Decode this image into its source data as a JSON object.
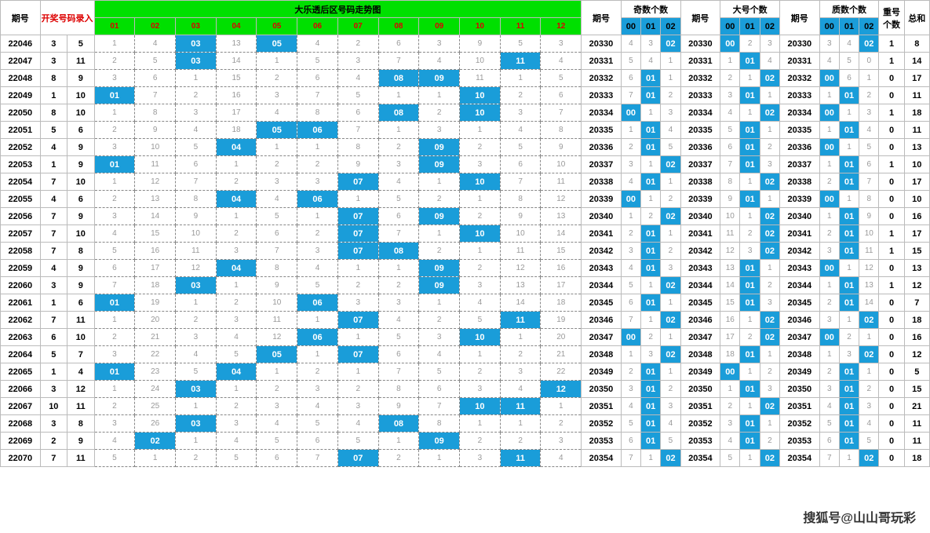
{
  "headers": {
    "issue": "期号",
    "record": "开奖号码录入",
    "trend_title": "大乐透后区号码走势图",
    "side_issue": "期号",
    "odd": "奇数个数",
    "big": "大号个数",
    "prime": "质数个数",
    "repeat": "重号个数",
    "sum": "总和",
    "watermark": "搜狐号@山山哥玩彩"
  },
  "trend_cols": [
    "01",
    "02",
    "03",
    "04",
    "05",
    "06",
    "07",
    "08",
    "09",
    "10",
    "11",
    "12"
  ],
  "cnt_cols": [
    "00",
    "01",
    "02"
  ],
  "colors": {
    "green": "#00e000",
    "highlight": "#1a9dd9",
    "miss_text": "#999999",
    "header_red": "#dd0000",
    "border": "#bbbbbb",
    "dashed": "#888888"
  },
  "rows": [
    {
      "issue": "22046",
      "rec": [
        3,
        5
      ],
      "hits": [
        3,
        5
      ],
      "miss": [
        1,
        4,
        0,
        13,
        0,
        4,
        2,
        6,
        3,
        9,
        5,
        3
      ],
      "side": "20330",
      "odd": {
        "h": 2,
        "m": [
          4,
          3,
          0
        ]
      },
      "big": {
        "h": 0,
        "m": [
          0,
          2,
          3
        ]
      },
      "prime": {
        "h": 2,
        "m": [
          3,
          4,
          0
        ]
      },
      "rep": 1,
      "sum": 8
    },
    {
      "issue": "22047",
      "rec": [
        3,
        11
      ],
      "hits": [
        3,
        11
      ],
      "miss": [
        2,
        5,
        0,
        14,
        1,
        5,
        3,
        7,
        4,
        10,
        0,
        4
      ],
      "side": "20331",
      "odd": {
        "h": null,
        "m": [
          5,
          4,
          1
        ]
      },
      "big": {
        "h": 1,
        "m": [
          1,
          0,
          4
        ]
      },
      "prime": {
        "h": null,
        "m": [
          4,
          5,
          0
        ]
      },
      "rep": 1,
      "sum": 14
    },
    {
      "issue": "22048",
      "rec": [
        8,
        9
      ],
      "hits": [
        8,
        9
      ],
      "miss": [
        3,
        6,
        1,
        15,
        2,
        6,
        4,
        0,
        0,
        11,
        1,
        5
      ],
      "side": "20332",
      "odd": {
        "h": 1,
        "m": [
          6,
          0,
          1
        ]
      },
      "big": {
        "h": 2,
        "m": [
          2,
          1,
          0
        ]
      },
      "prime": {
        "h": 0,
        "m": [
          0,
          6,
          1
        ]
      },
      "rep": 0,
      "sum": 17
    },
    {
      "issue": "22049",
      "rec": [
        1,
        10
      ],
      "hits": [
        1,
        10
      ],
      "miss": [
        0,
        7,
        2,
        16,
        3,
        7,
        5,
        1,
        1,
        0,
        2,
        6
      ],
      "side": "20333",
      "odd": {
        "h": 1,
        "m": [
          7,
          0,
          2
        ]
      },
      "big": {
        "h": 1,
        "m": [
          3,
          0,
          1
        ]
      },
      "prime": {
        "h": 1,
        "m": [
          1,
          0,
          2
        ]
      },
      "rep": 0,
      "sum": 11
    },
    {
      "issue": "22050",
      "rec": [
        8,
        10
      ],
      "hits": [
        8,
        10
      ],
      "miss": [
        1,
        8,
        3,
        17,
        4,
        8,
        6,
        0,
        2,
        0,
        3,
        7
      ],
      "side": "20334",
      "odd": {
        "h": 0,
        "m": [
          0,
          1,
          3
        ]
      },
      "big": {
        "h": 2,
        "m": [
          4,
          1,
          0
        ]
      },
      "prime": {
        "h": 0,
        "m": [
          0,
          1,
          3
        ]
      },
      "rep": 1,
      "sum": 18
    },
    {
      "issue": "22051",
      "rec": [
        5,
        6
      ],
      "hits": [
        5,
        6
      ],
      "miss": [
        2,
        9,
        4,
        18,
        0,
        0,
        7,
        1,
        3,
        1,
        4,
        8
      ],
      "side": "20335",
      "odd": {
        "h": 1,
        "m": [
          1,
          0,
          4
        ]
      },
      "big": {
        "h": 1,
        "m": [
          5,
          0,
          1
        ]
      },
      "prime": {
        "h": 1,
        "m": [
          1,
          0,
          4
        ]
      },
      "rep": 0,
      "sum": 11
    },
    {
      "issue": "22052",
      "rec": [
        4,
        9
      ],
      "hits": [
        4,
        9
      ],
      "miss": [
        3,
        10,
        5,
        0,
        1,
        1,
        8,
        2,
        0,
        2,
        5,
        9
      ],
      "side": "20336",
      "odd": {
        "h": 1,
        "m": [
          2,
          0,
          5
        ]
      },
      "big": {
        "h": 1,
        "m": [
          6,
          0,
          2
        ]
      },
      "prime": {
        "h": 0,
        "m": [
          0,
          1,
          5
        ]
      },
      "rep": 0,
      "sum": 13
    },
    {
      "issue": "22053",
      "rec": [
        1,
        9
      ],
      "hits": [
        1,
        9
      ],
      "miss": [
        0,
        11,
        6,
        1,
        2,
        2,
        9,
        3,
        0,
        3,
        6,
        10
      ],
      "side": "20337",
      "odd": {
        "h": 2,
        "m": [
          3,
          1,
          0
        ]
      },
      "big": {
        "h": 1,
        "m": [
          7,
          0,
          3
        ]
      },
      "prime": {
        "h": 1,
        "m": [
          1,
          0,
          6
        ]
      },
      "rep": 1,
      "sum": 10
    },
    {
      "issue": "22054",
      "rec": [
        7,
        10
      ],
      "hits": [
        7,
        10
      ],
      "miss": [
        1,
        12,
        7,
        2,
        3,
        3,
        0,
        4,
        1,
        0,
        7,
        11
      ],
      "side": "20338",
      "odd": {
        "h": 1,
        "m": [
          4,
          0,
          1
        ]
      },
      "big": {
        "h": 2,
        "m": [
          8,
          1,
          0
        ]
      },
      "prime": {
        "h": 1,
        "m": [
          2,
          0,
          7
        ]
      },
      "rep": 0,
      "sum": 17
    },
    {
      "issue": "22055",
      "rec": [
        4,
        6
      ],
      "hits": [
        4,
        6
      ],
      "miss": [
        2,
        13,
        8,
        0,
        4,
        0,
        1,
        5,
        2,
        1,
        8,
        12
      ],
      "side": "20339",
      "odd": {
        "h": 0,
        "m": [
          0,
          1,
          2
        ]
      },
      "big": {
        "h": 1,
        "m": [
          9,
          0,
          1
        ]
      },
      "prime": {
        "h": 0,
        "m": [
          0,
          1,
          8
        ]
      },
      "rep": 0,
      "sum": 10
    },
    {
      "issue": "22056",
      "rec": [
        7,
        9
      ],
      "hits": [
        7,
        9
      ],
      "miss": [
        3,
        14,
        9,
        1,
        5,
        1,
        0,
        6,
        0,
        2,
        9,
        13
      ],
      "side": "20340",
      "odd": {
        "h": 2,
        "m": [
          1,
          2,
          0
        ]
      },
      "big": {
        "h": 2,
        "m": [
          10,
          1,
          0
        ]
      },
      "prime": {
        "h": 1,
        "m": [
          1,
          0,
          9
        ]
      },
      "rep": 0,
      "sum": 16
    },
    {
      "issue": "22057",
      "rec": [
        7,
        10
      ],
      "hits": [
        7,
        10
      ],
      "miss": [
        4,
        15,
        10,
        2,
        6,
        2,
        0,
        7,
        1,
        0,
        10,
        14
      ],
      "side": "20341",
      "odd": {
        "h": 1,
        "m": [
          2,
          0,
          1
        ]
      },
      "big": {
        "h": 2,
        "m": [
          11,
          2,
          0
        ]
      },
      "prime": {
        "h": 1,
        "m": [
          2,
          0,
          10
        ]
      },
      "rep": 1,
      "sum": 17
    },
    {
      "issue": "22058",
      "rec": [
        7,
        8
      ],
      "hits": [
        7,
        8
      ],
      "miss": [
        5,
        16,
        11,
        3,
        7,
        3,
        0,
        0,
        2,
        1,
        11,
        15
      ],
      "side": "20342",
      "odd": {
        "h": 1,
        "m": [
          3,
          0,
          2
        ]
      },
      "big": {
        "h": 2,
        "m": [
          12,
          3,
          0
        ]
      },
      "prime": {
        "h": 1,
        "m": [
          3,
          0,
          11
        ]
      },
      "rep": 1,
      "sum": 15
    },
    {
      "issue": "22059",
      "rec": [
        4,
        9
      ],
      "hits": [
        4,
        9
      ],
      "miss": [
        6,
        17,
        12,
        0,
        8,
        4,
        1,
        1,
        0,
        2,
        12,
        16
      ],
      "side": "20343",
      "odd": {
        "h": 1,
        "m": [
          4,
          0,
          3
        ]
      },
      "big": {
        "h": 1,
        "m": [
          13,
          0,
          1
        ]
      },
      "prime": {
        "h": 0,
        "m": [
          0,
          1,
          12
        ]
      },
      "rep": 0,
      "sum": 13
    },
    {
      "issue": "22060",
      "rec": [
        3,
        9
      ],
      "hits": [
        3,
        9
      ],
      "miss": [
        7,
        18,
        0,
        1,
        9,
        5,
        2,
        2,
        0,
        3,
        13,
        17
      ],
      "side": "20344",
      "odd": {
        "h": 2,
        "m": [
          5,
          1,
          0
        ]
      },
      "big": {
        "h": 1,
        "m": [
          14,
          0,
          2
        ]
      },
      "prime": {
        "h": 1,
        "m": [
          1,
          0,
          13
        ]
      },
      "rep": 1,
      "sum": 12
    },
    {
      "issue": "22061",
      "rec": [
        1,
        6
      ],
      "hits": [
        1,
        6
      ],
      "miss": [
        0,
        19,
        1,
        2,
        10,
        0,
        3,
        3,
        1,
        4,
        14,
        18
      ],
      "side": "20345",
      "odd": {
        "h": 1,
        "m": [
          6,
          0,
          1
        ]
      },
      "big": {
        "h": 1,
        "m": [
          15,
          0,
          3
        ]
      },
      "prime": {
        "h": 1,
        "m": [
          2,
          0,
          14
        ]
      },
      "rep": 0,
      "sum": 7
    },
    {
      "issue": "22062",
      "rec": [
        7,
        11
      ],
      "hits": [
        7,
        11
      ],
      "miss": [
        1,
        20,
        2,
        3,
        11,
        1,
        0,
        4,
        2,
        5,
        0,
        19
      ],
      "side": "20346",
      "odd": {
        "h": 2,
        "m": [
          7,
          1,
          0
        ]
      },
      "big": {
        "h": 2,
        "m": [
          16,
          1,
          0
        ]
      },
      "prime": {
        "h": 2,
        "m": [
          3,
          1,
          0
        ]
      },
      "rep": 0,
      "sum": 18
    },
    {
      "issue": "22063",
      "rec": [
        6,
        10
      ],
      "hits": [
        6,
        10
      ],
      "miss": [
        2,
        21,
        3,
        4,
        12,
        0,
        1,
        5,
        3,
        0,
        1,
        20
      ],
      "side": "20347",
      "odd": {
        "h": 0,
        "m": [
          0,
          2,
          1
        ]
      },
      "big": {
        "h": 2,
        "m": [
          17,
          2,
          0
        ]
      },
      "prime": {
        "h": 0,
        "m": [
          0,
          2,
          1
        ]
      },
      "rep": 0,
      "sum": 16
    },
    {
      "issue": "22064",
      "rec": [
        5,
        7
      ],
      "hits": [
        5,
        7
      ],
      "miss": [
        3,
        22,
        4,
        5,
        0,
        1,
        0,
        6,
        4,
        1,
        2,
        21
      ],
      "side": "20348",
      "odd": {
        "h": 2,
        "m": [
          1,
          3,
          0
        ]
      },
      "big": {
        "h": 1,
        "m": [
          18,
          0,
          1
        ]
      },
      "prime": {
        "h": 2,
        "m": [
          1,
          3,
          0
        ]
      },
      "rep": 0,
      "sum": 12
    },
    {
      "issue": "22065",
      "rec": [
        1,
        4
      ],
      "hits": [
        1,
        4
      ],
      "miss": [
        0,
        23,
        5,
        0,
        1,
        2,
        1,
        7,
        5,
        2,
        3,
        22
      ],
      "side": "20349",
      "odd": {
        "h": 1,
        "m": [
          2,
          0,
          1
        ]
      },
      "big": {
        "h": 0,
        "m": [
          0,
          1,
          2
        ]
      },
      "prime": {
        "h": 1,
        "m": [
          2,
          0,
          1
        ]
      },
      "rep": 0,
      "sum": 5
    },
    {
      "issue": "22066",
      "rec": [
        3,
        12
      ],
      "hits": [
        3,
        12
      ],
      "miss": [
        1,
        24,
        0,
        1,
        2,
        3,
        2,
        8,
        6,
        3,
        4,
        0
      ],
      "side": "20350",
      "odd": {
        "h": 1,
        "m": [
          3,
          0,
          2
        ]
      },
      "big": {
        "h": 1,
        "m": [
          1,
          0,
          3
        ]
      },
      "prime": {
        "h": 1,
        "m": [
          3,
          0,
          2
        ]
      },
      "rep": 0,
      "sum": 15
    },
    {
      "issue": "22067",
      "rec": [
        10,
        11
      ],
      "hits": [
        10,
        11
      ],
      "miss": [
        2,
        25,
        1,
        2,
        3,
        4,
        3,
        9,
        7,
        0,
        0,
        1
      ],
      "side": "20351",
      "odd": {
        "h": 1,
        "m": [
          4,
          0,
          3
        ]
      },
      "big": {
        "h": 2,
        "m": [
          2,
          1,
          0
        ]
      },
      "prime": {
        "h": 1,
        "m": [
          4,
          0,
          3
        ]
      },
      "rep": 0,
      "sum": 21
    },
    {
      "issue": "22068",
      "rec": [
        3,
        8
      ],
      "hits": [
        3,
        8
      ],
      "miss": [
        3,
        26,
        0,
        3,
        4,
        5,
        4,
        0,
        8,
        1,
        1,
        2
      ],
      "side": "20352",
      "odd": {
        "h": 1,
        "m": [
          5,
          0,
          4
        ]
      },
      "big": {
        "h": 1,
        "m": [
          3,
          0,
          1
        ]
      },
      "prime": {
        "h": 1,
        "m": [
          5,
          0,
          4
        ]
      },
      "rep": 0,
      "sum": 11
    },
    {
      "issue": "22069",
      "rec": [
        2,
        9
      ],
      "hits": [
        2,
        9
      ],
      "miss": [
        4,
        0,
        1,
        4,
        5,
        6,
        5,
        1,
        0,
        2,
        2,
        3
      ],
      "side": "20353",
      "odd": {
        "h": 1,
        "m": [
          6,
          0,
          5
        ]
      },
      "big": {
        "h": 1,
        "m": [
          4,
          0,
          2
        ]
      },
      "prime": {
        "h": 1,
        "m": [
          6,
          0,
          5
        ]
      },
      "rep": 0,
      "sum": 11
    },
    {
      "issue": "22070",
      "rec": [
        7,
        11
      ],
      "hits": [
        7,
        11
      ],
      "miss": [
        5,
        1,
        2,
        5,
        6,
        7,
        0,
        2,
        1,
        3,
        0,
        4
      ],
      "side": "20354",
      "odd": {
        "h": 2,
        "m": [
          7,
          1,
          0
        ]
      },
      "big": {
        "h": 2,
        "m": [
          5,
          1,
          0
        ]
      },
      "prime": {
        "h": 2,
        "m": [
          7,
          1,
          0
        ]
      },
      "rep": 0,
      "sum": 18
    }
  ]
}
